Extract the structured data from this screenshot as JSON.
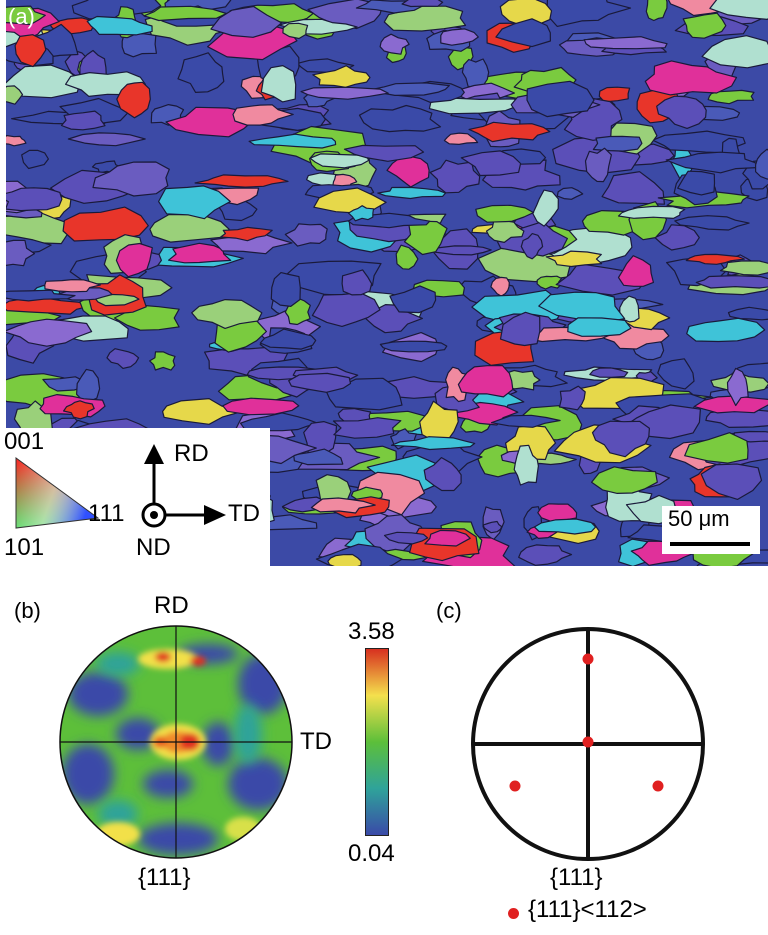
{
  "panel_a": {
    "label": "(a)",
    "legend": {
      "corner_001": "001",
      "corner_101": "101",
      "corner_111": "111"
    },
    "axes": {
      "rd": "RD",
      "td": "TD",
      "nd": "ND"
    },
    "scalebar": "50 μm",
    "colors": {
      "blue": "#3a4aa8",
      "violet": "#5b4fb8",
      "green": "#7acb3f",
      "red": "#e8352a",
      "magenta": "#e0309a",
      "cyan": "#3fc3d8",
      "yellow": "#e6d84a"
    }
  },
  "panel_b": {
    "label": "(b)",
    "rd": "RD",
    "td": "TD",
    "pole": "{111}",
    "colorbar": {
      "max": "3.58",
      "min": "0.04",
      "colors": [
        "#d7301f",
        "#f4e04d",
        "#5cbf3a",
        "#2fa39a",
        "#3a4aa8"
      ]
    }
  },
  "panel_c": {
    "label": "(c)",
    "pole": "{111}",
    "legend_text": "{111}<112>",
    "marker_color": "#e02020"
  }
}
